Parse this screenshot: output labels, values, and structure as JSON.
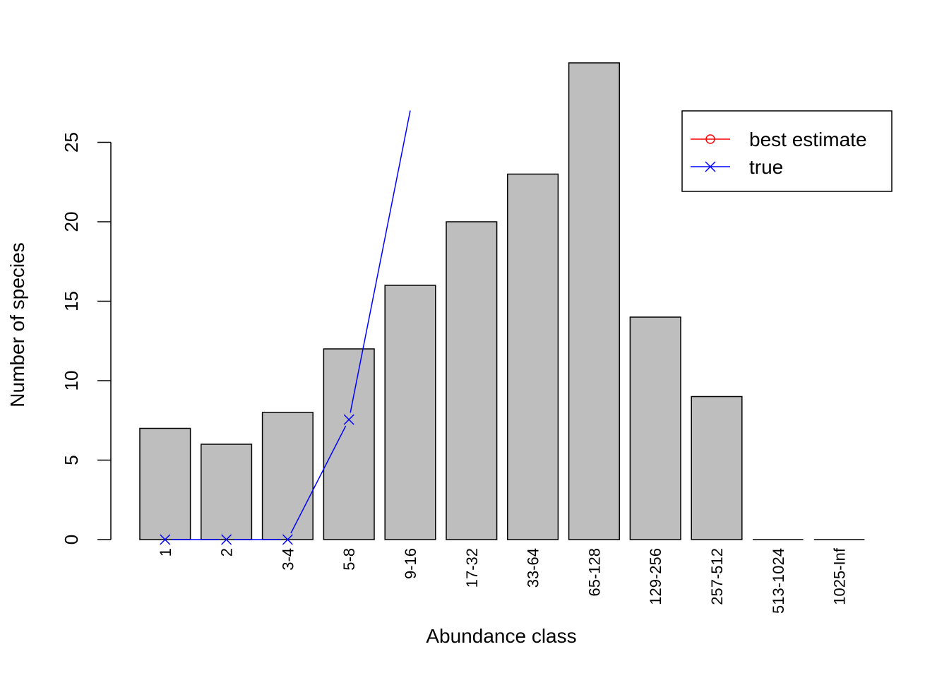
{
  "chart_data": {
    "type": "bar",
    "xlabel": "Abundance class",
    "ylabel": "Number of species",
    "ylim": [
      0,
      30
    ],
    "yticks": [
      0,
      5,
      10,
      15,
      20,
      25
    ],
    "categories": [
      "1",
      "2",
      "3-4",
      "5-8",
      "9-16",
      "17-32",
      "33-64",
      "65-128",
      "129-256",
      "257-512",
      "513-1024",
      "1025-Inf"
    ],
    "values": [
      7,
      6,
      8,
      12,
      16,
      20,
      23,
      30,
      14,
      9,
      0,
      0
    ],
    "bar_color": "#bebebe",
    "lines": [
      {
        "name": "best estimate",
        "color": "#ff0000",
        "marker": "circle",
        "values": []
      },
      {
        "name": "true",
        "color": "#0000ff",
        "marker": "x",
        "values": [
          0,
          0,
          0,
          7.55,
          27.0
        ]
      }
    ],
    "legend_position": "top-right"
  }
}
